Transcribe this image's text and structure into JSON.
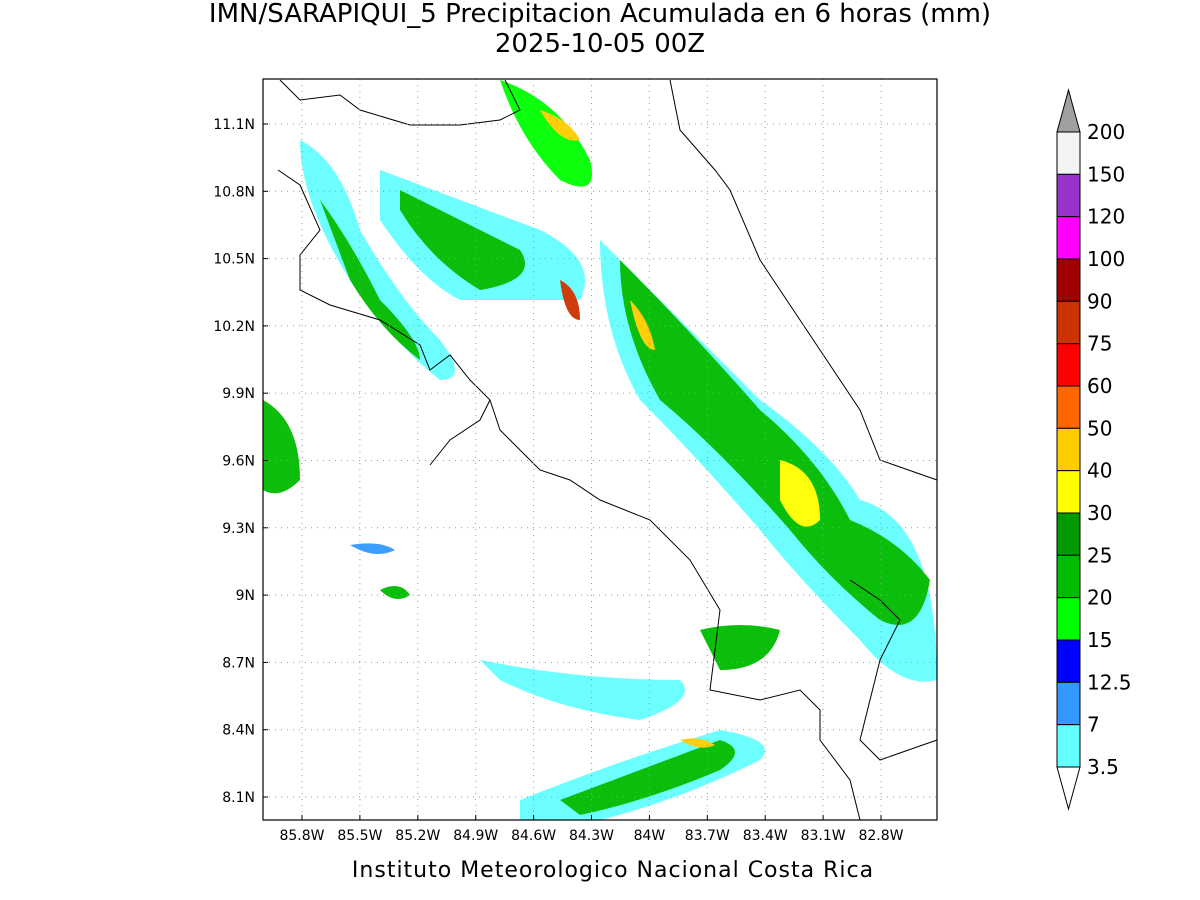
{
  "title": "IMN/SARAPIQUI_5 Precipitacion Acumulada en 6 horas (mm)",
  "subtitle": "2025-10-05 00Z",
  "map": {
    "lat_labels": [
      "11.1N",
      "10.8N",
      "10.5N",
      "10.2N",
      "9.9N",
      "9.6N",
      "9.3N",
      "9N",
      "8.7N",
      "8.4N",
      "8.1N"
    ],
    "lon_labels": [
      "85.8W",
      "85.5W",
      "85.2W",
      "84.9W",
      "84.6W",
      "84.3W",
      "84W",
      "83.7W",
      "83.4W",
      "83.1W",
      "82.8W"
    ]
  },
  "colorbar": {
    "levels": [
      200,
      150,
      120,
      100,
      90,
      75,
      60,
      50,
      40,
      30,
      25,
      20,
      15,
      12.5,
      7,
      3.5
    ],
    "colors": [
      "#f4f4f4",
      "#9933cc",
      "#ff00ff",
      "#a00000",
      "#cc3300",
      "#ff0000",
      "#ff6600",
      "#ffcc00",
      "#ffff00",
      "#009900",
      "#00bb00",
      "#00ff00",
      "#0000ff",
      "#3399ff",
      "#66ffff"
    ],
    "over_color": "#a0a0a0",
    "under_color": "#ffffff"
  },
  "footer": "Instituto Meteorologico Nacional Costa Rica"
}
